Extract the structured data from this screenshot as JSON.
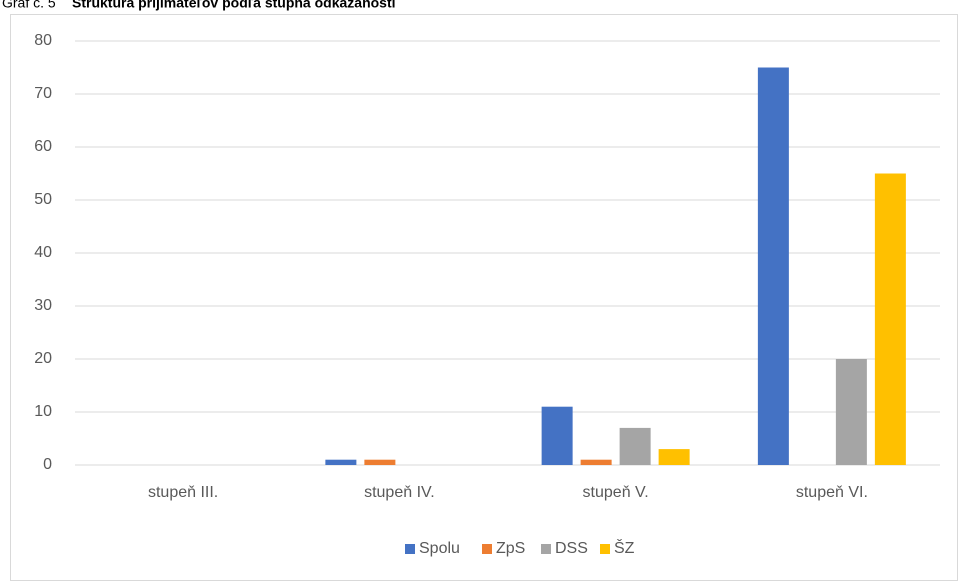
{
  "chart_data": {
    "type": "bar",
    "caption_number": "Graf č. 5",
    "title": "Štruktúra prijímateľov podľa stupňa odkázanosti",
    "categories": [
      "stupeň III.",
      "stupeň IV.",
      "stupeň V.",
      "stupeň VI."
    ],
    "series": [
      {
        "name": "Spolu",
        "color": "#4472c4",
        "values": [
          0,
          1,
          11,
          75
        ]
      },
      {
        "name": "ZpS",
        "color": "#ed7d31",
        "values": [
          0,
          1,
          1,
          0
        ]
      },
      {
        "name": "DSS",
        "color": "#a5a5a5",
        "values": [
          0,
          0,
          7,
          20
        ]
      },
      {
        "name": "ŠZ",
        "color": "#ffc000",
        "values": [
          0,
          0,
          3,
          55
        ]
      }
    ],
    "ylim": [
      0,
      80
    ],
    "yticks": [
      0,
      10,
      20,
      30,
      40,
      50,
      60,
      70,
      80
    ],
    "grid": true,
    "legend": "bottom"
  }
}
